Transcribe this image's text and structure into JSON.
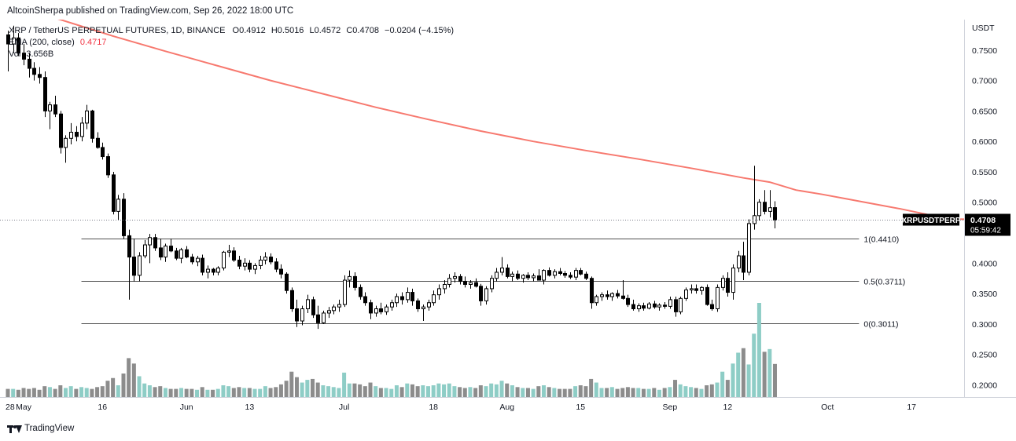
{
  "header": {
    "publisher_text": "AltcoinSherpa published on TradingView.com, Sep 26, 2022 18:00 UTC"
  },
  "legend": {
    "symbol_line": "XRP / TetherUS PERPETUAL FUTURES, 1D, BINANCE",
    "open_label": "O",
    "open": "0.4912",
    "high_label": "H",
    "high": "0.5016",
    "low_label": "L",
    "low": "0.4572",
    "close_label": "C",
    "close": "0.4708",
    "change": "−0.0204 (−4.15%)",
    "ma_label": "EMA (200, close)",
    "ma_value": "0.4717",
    "vol_label": "Vol",
    "vol_value": "3.656B"
  },
  "footer": {
    "brand": "TradingView"
  },
  "colors": {
    "up_body": "#ffffff",
    "down_body": "#000000",
    "wick": "#000000",
    "ema": "#f7796f",
    "vol_up": "#8ecdc6",
    "vol_down": "#8c8c8c",
    "fib_line": "#505050",
    "price_label_bg": "#000000"
  },
  "chart_data": {
    "type": "candlestick",
    "interval": "1D",
    "currency": "USDT",
    "y_range": [
      0.18,
      0.8
    ],
    "y_ticks": [
      "0.7500",
      "0.7000",
      "0.6500",
      "0.6000",
      "0.5500",
      "0.5000",
      "0.4500",
      "0.4000",
      "0.3500",
      "0.3000",
      "0.2500",
      "0.2000"
    ],
    "x_tick_labels": [
      {
        "date": "2022-04-28",
        "label": "28"
      },
      {
        "date": "2022-05-01",
        "label": "May"
      },
      {
        "date": "2022-05-16",
        "label": "16"
      },
      {
        "date": "2022-06-01",
        "label": "Jun"
      },
      {
        "date": "2022-06-13",
        "label": "13"
      },
      {
        "date": "2022-07-01",
        "label": "Jul"
      },
      {
        "date": "2022-07-18",
        "label": "18"
      },
      {
        "date": "2022-08-01",
        "label": "Aug"
      },
      {
        "date": "2022-08-15",
        "label": "15"
      },
      {
        "date": "2022-09-01",
        "label": "Sep"
      },
      {
        "date": "2022-09-12",
        "label": "12"
      },
      {
        "date": "2022-10-01",
        "label": "Oct"
      },
      {
        "date": "2022-10-17",
        "label": "17"
      }
    ],
    "x_range": [
      "2022-04-28",
      "2022-10-27"
    ],
    "first_candle_date": "2022-04-28",
    "candles": [
      [
        0.775,
        0.782,
        0.715,
        0.76
      ],
      [
        0.76,
        0.79,
        0.745,
        0.77
      ],
      [
        0.77,
        0.778,
        0.74,
        0.745
      ],
      [
        0.745,
        0.76,
        0.725,
        0.735
      ],
      [
        0.735,
        0.745,
        0.705,
        0.72
      ],
      [
        0.72,
        0.73,
        0.7,
        0.71
      ],
      [
        0.71,
        0.722,
        0.695,
        0.705
      ],
      [
        0.705,
        0.715,
        0.64,
        0.65
      ],
      [
        0.65,
        0.665,
        0.62,
        0.66
      ],
      [
        0.66,
        0.675,
        0.64,
        0.645
      ],
      [
        0.645,
        0.65,
        0.58,
        0.59
      ],
      [
        0.59,
        0.61,
        0.565,
        0.605
      ],
      [
        0.605,
        0.63,
        0.595,
        0.615
      ],
      [
        0.615,
        0.625,
        0.6,
        0.608
      ],
      [
        0.608,
        0.64,
        0.6,
        0.63
      ],
      [
        0.63,
        0.66,
        0.62,
        0.65
      ],
      [
        0.65,
        0.652,
        0.598,
        0.605
      ],
      [
        0.605,
        0.615,
        0.588,
        0.59
      ],
      [
        0.59,
        0.598,
        0.57,
        0.575
      ],
      [
        0.575,
        0.58,
        0.54,
        0.545
      ],
      [
        0.545,
        0.55,
        0.48,
        0.485
      ],
      [
        0.485,
        0.512,
        0.47,
        0.505
      ],
      [
        0.505,
        0.515,
        0.44,
        0.445
      ],
      [
        0.445,
        0.455,
        0.34,
        0.41
      ],
      [
        0.41,
        0.44,
        0.37,
        0.38
      ],
      [
        0.38,
        0.418,
        0.37,
        0.412
      ],
      [
        0.412,
        0.438,
        0.408,
        0.43
      ],
      [
        0.43,
        0.448,
        0.4,
        0.442
      ],
      [
        0.442,
        0.448,
        0.42,
        0.425
      ],
      [
        0.425,
        0.44,
        0.405,
        0.41
      ],
      [
        0.41,
        0.432,
        0.402,
        0.428
      ],
      [
        0.428,
        0.44,
        0.418,
        0.42
      ],
      [
        0.42,
        0.425,
        0.405,
        0.408
      ],
      [
        0.408,
        0.425,
        0.4,
        0.422
      ],
      [
        0.422,
        0.428,
        0.408,
        0.41
      ],
      [
        0.41,
        0.415,
        0.398,
        0.402
      ],
      [
        0.402,
        0.412,
        0.395,
        0.408
      ],
      [
        0.408,
        0.414,
        0.38,
        0.385
      ],
      [
        0.385,
        0.396,
        0.375,
        0.39
      ],
      [
        0.39,
        0.392,
        0.38,
        0.385
      ],
      [
        0.385,
        0.395,
        0.38,
        0.392
      ],
      [
        0.392,
        0.42,
        0.388,
        0.418
      ],
      [
        0.418,
        0.43,
        0.41,
        0.42
      ],
      [
        0.42,
        0.426,
        0.402,
        0.405
      ],
      [
        0.405,
        0.412,
        0.39,
        0.395
      ],
      [
        0.395,
        0.408,
        0.388,
        0.4
      ],
      [
        0.4,
        0.405,
        0.385,
        0.39
      ],
      [
        0.39,
        0.4,
        0.382,
        0.396
      ],
      [
        0.396,
        0.412,
        0.39,
        0.405
      ],
      [
        0.405,
        0.418,
        0.398,
        0.41
      ],
      [
        0.41,
        0.416,
        0.398,
        0.402
      ],
      [
        0.402,
        0.408,
        0.385,
        0.39
      ],
      [
        0.39,
        0.398,
        0.375,
        0.382
      ],
      [
        0.382,
        0.385,
        0.35,
        0.355
      ],
      [
        0.355,
        0.36,
        0.32,
        0.325
      ],
      [
        0.325,
        0.34,
        0.295,
        0.305
      ],
      [
        0.305,
        0.33,
        0.298,
        0.325
      ],
      [
        0.325,
        0.348,
        0.318,
        0.34
      ],
      [
        0.34,
        0.345,
        0.31,
        0.315
      ],
      [
        0.315,
        0.33,
        0.292,
        0.302
      ],
      [
        0.302,
        0.322,
        0.3,
        0.318
      ],
      [
        0.318,
        0.328,
        0.31,
        0.322
      ],
      [
        0.322,
        0.332,
        0.316,
        0.328
      ],
      [
        0.328,
        0.34,
        0.32,
        0.332
      ],
      [
        0.332,
        0.38,
        0.328,
        0.372
      ],
      [
        0.372,
        0.388,
        0.36,
        0.378
      ],
      [
        0.378,
        0.385,
        0.355,
        0.36
      ],
      [
        0.36,
        0.365,
        0.34,
        0.345
      ],
      [
        0.345,
        0.352,
        0.33,
        0.335
      ],
      [
        0.335,
        0.34,
        0.308,
        0.318
      ],
      [
        0.318,
        0.33,
        0.312,
        0.325
      ],
      [
        0.325,
        0.335,
        0.316,
        0.32
      ],
      [
        0.32,
        0.332,
        0.315,
        0.328
      ],
      [
        0.328,
        0.34,
        0.322,
        0.335
      ],
      [
        0.335,
        0.35,
        0.328,
        0.345
      ],
      [
        0.345,
        0.352,
        0.332,
        0.34
      ],
      [
        0.34,
        0.36,
        0.335,
        0.352
      ],
      [
        0.352,
        0.358,
        0.33,
        0.338
      ],
      [
        0.338,
        0.342,
        0.32,
        0.325
      ],
      [
        0.325,
        0.332,
        0.305,
        0.328
      ],
      [
        0.328,
        0.34,
        0.322,
        0.335
      ],
      [
        0.335,
        0.355,
        0.33,
        0.348
      ],
      [
        0.348,
        0.365,
        0.34,
        0.358
      ],
      [
        0.358,
        0.372,
        0.35,
        0.365
      ],
      [
        0.365,
        0.382,
        0.36,
        0.375
      ],
      [
        0.375,
        0.385,
        0.368,
        0.378
      ],
      [
        0.378,
        0.382,
        0.365,
        0.37
      ],
      [
        0.37,
        0.378,
        0.36,
        0.365
      ],
      [
        0.365,
        0.372,
        0.358,
        0.368
      ],
      [
        0.368,
        0.375,
        0.36,
        0.362
      ],
      [
        0.362,
        0.366,
        0.33,
        0.338
      ],
      [
        0.338,
        0.362,
        0.332,
        0.358
      ],
      [
        0.358,
        0.38,
        0.352,
        0.375
      ],
      [
        0.375,
        0.392,
        0.37,
        0.385
      ],
      [
        0.385,
        0.41,
        0.38,
        0.392
      ],
      [
        0.392,
        0.398,
        0.375,
        0.378
      ],
      [
        0.378,
        0.386,
        0.37,
        0.382
      ],
      [
        0.382,
        0.388,
        0.372,
        0.375
      ],
      [
        0.375,
        0.382,
        0.368,
        0.38
      ],
      [
        0.38,
        0.385,
        0.372,
        0.376
      ],
      [
        0.376,
        0.383,
        0.37,
        0.379
      ],
      [
        0.379,
        0.39,
        0.372,
        0.372
      ],
      [
        0.372,
        0.39,
        0.365,
        0.388
      ],
      [
        0.388,
        0.393,
        0.378,
        0.38
      ],
      [
        0.38,
        0.39,
        0.375,
        0.386
      ],
      [
        0.386,
        0.392,
        0.38,
        0.383
      ],
      [
        0.383,
        0.387,
        0.376,
        0.38
      ],
      [
        0.38,
        0.385,
        0.374,
        0.377
      ],
      [
        0.377,
        0.392,
        0.372,
        0.388
      ],
      [
        0.388,
        0.392,
        0.38,
        0.382
      ],
      [
        0.382,
        0.386,
        0.372,
        0.375
      ],
      [
        0.375,
        0.378,
        0.325,
        0.335
      ],
      [
        0.335,
        0.348,
        0.33,
        0.345
      ],
      [
        0.345,
        0.352,
        0.338,
        0.348
      ],
      [
        0.348,
        0.355,
        0.34,
        0.345
      ],
      [
        0.345,
        0.352,
        0.338,
        0.35
      ],
      [
        0.35,
        0.356,
        0.342,
        0.346
      ],
      [
        0.346,
        0.372,
        0.34,
        0.342
      ],
      [
        0.342,
        0.348,
        0.328,
        0.332
      ],
      [
        0.332,
        0.34,
        0.322,
        0.325
      ],
      [
        0.325,
        0.334,
        0.32,
        0.33
      ],
      [
        0.33,
        0.335,
        0.322,
        0.326
      ],
      [
        0.326,
        0.336,
        0.324,
        0.333
      ],
      [
        0.333,
        0.338,
        0.325,
        0.328
      ],
      [
        0.328,
        0.334,
        0.322,
        0.331
      ],
      [
        0.331,
        0.336,
        0.325,
        0.329
      ],
      [
        0.329,
        0.345,
        0.325,
        0.34
      ],
      [
        0.34,
        0.345,
        0.312,
        0.32
      ],
      [
        0.32,
        0.345,
        0.316,
        0.342
      ],
      [
        0.342,
        0.36,
        0.338,
        0.356
      ],
      [
        0.356,
        0.365,
        0.35,
        0.358
      ],
      [
        0.358,
        0.365,
        0.35,
        0.355
      ],
      [
        0.355,
        0.362,
        0.348,
        0.36
      ],
      [
        0.36,
        0.365,
        0.33,
        0.332
      ],
      [
        0.332,
        0.34,
        0.322,
        0.325
      ],
      [
        0.325,
        0.365,
        0.32,
        0.36
      ],
      [
        0.36,
        0.38,
        0.355,
        0.375
      ],
      [
        0.375,
        0.385,
        0.345,
        0.352
      ],
      [
        0.352,
        0.398,
        0.34,
        0.392
      ],
      [
        0.392,
        0.42,
        0.385,
        0.412
      ],
      [
        0.412,
        0.435,
        0.372,
        0.385
      ],
      [
        0.385,
        0.472,
        0.38,
        0.465
      ],
      [
        0.465,
        0.56,
        0.455,
        0.478
      ],
      [
        0.478,
        0.505,
        0.47,
        0.5
      ],
      [
        0.5,
        0.52,
        0.48,
        0.485
      ],
      [
        0.485,
        0.52,
        0.475,
        0.491
      ],
      [
        0.4912,
        0.5016,
        0.4572,
        0.4708
      ]
    ],
    "volume_billion": [
      0.9,
      0.9,
      0.8,
      1.0,
      0.9,
      1.0,
      0.8,
      1.2,
      1.1,
      0.9,
      1.3,
      1.0,
      1.2,
      0.9,
      1.1,
      1.0,
      0.9,
      1.1,
      1.2,
      1.8,
      2.1,
      1.3,
      2.6,
      4.3,
      3.7,
      2.3,
      1.5,
      1.3,
      1.1,
      1.2,
      1.0,
      0.9,
      0.9,
      1.0,
      0.9,
      0.9,
      0.8,
      1.1,
      0.8,
      0.8,
      0.9,
      1.3,
      1.2,
      1.0,
      1.1,
      1.0,
      1.0,
      0.9,
      0.9,
      1.2,
      1.0,
      1.1,
      1.4,
      1.8,
      2.8,
      2.2,
      1.6,
      1.9,
      2.0,
      1.6,
      1.3,
      1.2,
      1.1,
      1.0,
      2.7,
      1.5,
      1.5,
      1.4,
      1.2,
      1.6,
      1.2,
      1.0,
      1.0,
      0.9,
      1.3,
      1.1,
      1.5,
      1.4,
      1.2,
      1.3,
      1.2,
      1.3,
      1.5,
      1.4,
      1.5,
      1.2,
      1.1,
      1.0,
      1.1,
      1.0,
      1.3,
      1.2,
      1.5,
      1.4,
      1.8,
      1.5,
      1.3,
      1.1,
      1.0,
      1.0,
      0.9,
      1.2,
      1.3,
      1.1,
      1.0,
      0.9,
      0.9,
      0.9,
      1.2,
      1.3,
      1.2,
      2.0,
      1.6,
      1.0,
      1.0,
      1.1,
      0.9,
      1.0,
      1.1,
      1.0,
      1.0,
      0.9,
      0.9,
      1.0,
      0.8,
      1.0,
      1.1,
      1.9,
      1.4,
      1.2,
      1.1,
      1.0,
      0.9,
      1.3,
      1.4,
      1.6,
      2.8,
      1.9,
      3.7,
      4.9,
      5.4,
      3.6,
      7.0,
      10.4,
      5.0,
      5.3,
      3.656
    ],
    "volume_max_billion": 10.4,
    "ema_200": [
      [
        0,
        0.825
      ],
      [
        10,
        0.8
      ],
      [
        20,
        0.773
      ],
      [
        30,
        0.748
      ],
      [
        40,
        0.724
      ],
      [
        50,
        0.7
      ],
      [
        60,
        0.678
      ],
      [
        70,
        0.656
      ],
      [
        80,
        0.636
      ],
      [
        90,
        0.617
      ],
      [
        100,
        0.6
      ],
      [
        110,
        0.585
      ],
      [
        120,
        0.571
      ],
      [
        130,
        0.556
      ],
      [
        140,
        0.54
      ],
      [
        145,
        0.533
      ],
      [
        150,
        0.52
      ],
      [
        155,
        0.513
      ],
      [
        160,
        0.505
      ],
      [
        165,
        0.497
      ],
      [
        170,
        0.489
      ],
      [
        175,
        0.48
      ],
      [
        180,
        0.4725
      ],
      [
        185,
        0.4717
      ]
    ],
    "fib_levels": [
      {
        "label": "1(0.4410)",
        "value": 0.441
      },
      {
        "label": "0.5(0.3711)",
        "value": 0.3711
      },
      {
        "label": "0(0.3011)",
        "value": 0.3011
      }
    ],
    "fib_start_date": "2022-05-12",
    "fib_end_date": "2022-10-07",
    "last_price": {
      "symbol": "XRPUSDTPERP",
      "value": "0.4708",
      "countdown": "05:59:42"
    }
  }
}
